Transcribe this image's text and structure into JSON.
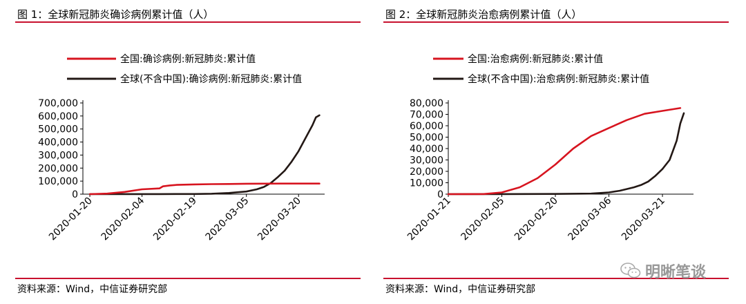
{
  "figures": [
    {
      "title": "图 1：全球新冠肺炎确诊病例累计值（人）",
      "source": "资料来源：Wind，中信证券研究部"
    },
    {
      "title": "图 2：全球新冠肺炎治愈病例累计值（人）",
      "source": "资料来源：Wind，中信证券研究部"
    }
  ],
  "watermark": {
    "text": "明晰笔谈",
    "icon": "wechat-icon"
  },
  "chart_data": [
    {
      "type": "line",
      "title": "",
      "xlabel": "",
      "ylabel": "",
      "x_ticks": [
        "2020-01-20",
        "2020-02-04",
        "2020-02-19",
        "2020-03-05",
        "2020-03-20"
      ],
      "x_tick_days": [
        0,
        15,
        30,
        45,
        60
      ],
      "ylim": [
        0,
        700000
      ],
      "y_ticks": [
        0,
        100000,
        200000,
        300000,
        400000,
        500000,
        600000,
        700000
      ],
      "y_tick_labels": [
        "0",
        "100,000",
        "200,000",
        "300,000",
        "400,000",
        "500,000",
        "600,000",
        "700,000"
      ],
      "xlim": [
        -2,
        67.5
      ],
      "legend_position": "top-left",
      "grid": false,
      "series": [
        {
          "name": "全国:确诊病例:新冠肺炎:累计值",
          "color": "#d7141f",
          "x": [
            0,
            5,
            10,
            15,
            20,
            21,
            23,
            25,
            30,
            35,
            40,
            45,
            50,
            55,
            60,
            65,
            66
          ],
          "y": [
            0,
            4000,
            17000,
            37000,
            44000,
            60000,
            67000,
            71000,
            75000,
            77000,
            78000,
            80000,
            80500,
            81000,
            81000,
            81000,
            81000
          ]
        },
        {
          "name": "全球(不含中国):确诊病例:新冠肺炎:累计值",
          "color": "#231815",
          "x": [
            0,
            10,
            20,
            30,
            35,
            40,
            45,
            48,
            50,
            52,
            54,
            56,
            58,
            60,
            62,
            64,
            65,
            66
          ],
          "y": [
            0,
            300,
            600,
            1300,
            3000,
            9000,
            20000,
            37000,
            55000,
            85000,
            130000,
            180000,
            250000,
            330000,
            430000,
            530000,
            590000,
            605000
          ]
        }
      ]
    },
    {
      "type": "line",
      "title": "",
      "xlabel": "",
      "ylabel": "",
      "x_ticks": [
        "2020-01-21",
        "2020-02-05",
        "2020-02-20",
        "2020-03-06",
        "2020-03-21"
      ],
      "x_tick_days": [
        0,
        15,
        30,
        45,
        60
      ],
      "ylim": [
        0,
        80000
      ],
      "y_ticks": [
        0,
        10000,
        20000,
        30000,
        40000,
        50000,
        60000,
        70000,
        80000
      ],
      "y_tick_labels": [
        "0",
        "10,000",
        "20,000",
        "30,000",
        "40,000",
        "50,000",
        "60,000",
        "70,000",
        "80,000"
      ],
      "xlim": [
        0,
        68.7
      ],
      "legend_position": "top-left",
      "grid": false,
      "series": [
        {
          "name": "全国:治愈病例:新冠肺炎:累计值",
          "color": "#d7141f",
          "x": [
            0,
            5,
            10,
            15,
            20,
            25,
            30,
            35,
            40,
            45,
            50,
            55,
            60,
            65
          ],
          "y": [
            0,
            50,
            150,
            1500,
            6000,
            14000,
            26000,
            40000,
            51000,
            58000,
            65000,
            70500,
            73000,
            75500
          ]
        },
        {
          "name": "全球(不含中国):治愈病例:新冠肺炎:累计值",
          "color": "#231815",
          "x": [
            0,
            15,
            30,
            40,
            45,
            48,
            50,
            52,
            54,
            56,
            58,
            60,
            62,
            64,
            65,
            66
          ],
          "y": [
            0,
            50,
            200,
            500,
            1500,
            3000,
            4500,
            6000,
            8000,
            11000,
            16000,
            22000,
            30000,
            47000,
            62000,
            71000
          ]
        }
      ]
    }
  ]
}
